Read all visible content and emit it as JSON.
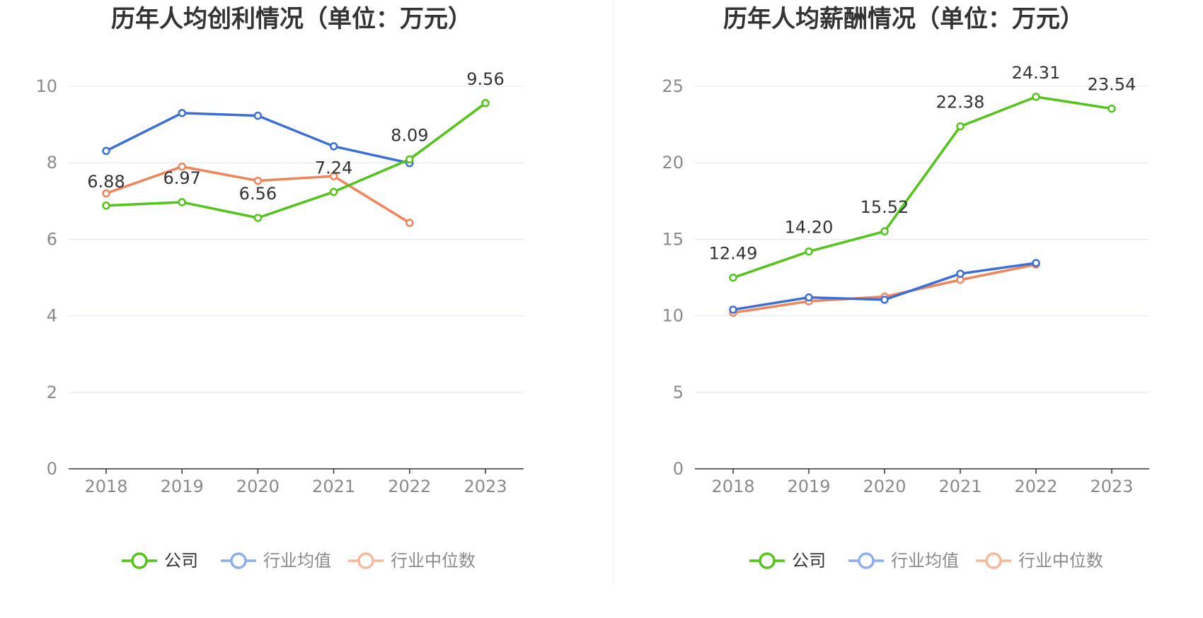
{
  "colors": {
    "company": "#52c41a",
    "industry_avg": "#3b6fd8",
    "industry_median": "#f0845a",
    "legend_avg": "#8cadef",
    "legend_median": "#f7b89b",
    "grid": "#dfe4ef",
    "axis": "#333333"
  },
  "legend": {
    "company": "公司",
    "industry_avg": "行业均值",
    "industry_median": "行业中位数"
  },
  "chart_data": [
    {
      "type": "line",
      "title": "历年人均创利情况（单位：万元）",
      "categories": [
        "2018",
        "2019",
        "2020",
        "2021",
        "2022",
        "2023"
      ],
      "ylim": [
        0,
        10
      ],
      "yticks": [
        "0",
        "2",
        "4",
        "6",
        "8",
        "10"
      ],
      "grid": true,
      "legend_position": "bottom",
      "series": [
        {
          "name": "公司",
          "key": "company",
          "values": [
            6.88,
            6.97,
            6.56,
            7.24,
            8.09,
            9.56
          ],
          "labels": [
            "6.88",
            "6.97",
            "6.56",
            "7.24",
            "8.09",
            "9.56"
          ]
        },
        {
          "name": "行业均值",
          "key": "industry_avg",
          "values": [
            8.31,
            9.3,
            9.23,
            8.43,
            7.99,
            null
          ]
        },
        {
          "name": "行业中位数",
          "key": "industry_median",
          "values": [
            7.2,
            7.9,
            7.53,
            7.65,
            6.43,
            null
          ]
        }
      ]
    },
    {
      "type": "line",
      "title": "历年人均薪酬情况（单位：万元）",
      "categories": [
        "2018",
        "2019",
        "2020",
        "2021",
        "2022",
        "2023"
      ],
      "ylim": [
        0,
        25
      ],
      "yticks": [
        "0",
        "5",
        "10",
        "15",
        "20",
        "25"
      ],
      "grid": true,
      "legend_position": "bottom",
      "series": [
        {
          "name": "公司",
          "key": "company",
          "values": [
            12.49,
            14.2,
            15.52,
            22.38,
            24.31,
            23.54
          ],
          "labels": [
            "12.49",
            "14.20",
            "15.52",
            "22.38",
            "24.31",
            "23.54"
          ]
        },
        {
          "name": "行业均值",
          "key": "industry_avg",
          "values": [
            10.4,
            11.2,
            11.05,
            12.75,
            13.45,
            null
          ]
        },
        {
          "name": "行业中位数",
          "key": "industry_median",
          "values": [
            10.2,
            10.95,
            11.25,
            12.35,
            13.35,
            null
          ]
        }
      ]
    }
  ]
}
